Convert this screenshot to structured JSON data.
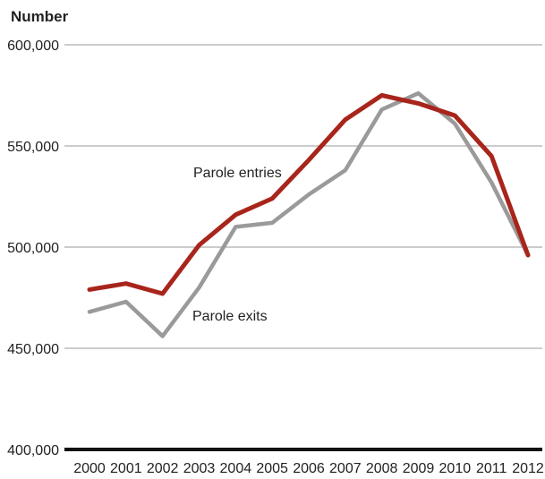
{
  "chart_data": {
    "type": "line",
    "ylabel": "Number",
    "xlabel": "",
    "title": "",
    "x": [
      "2000",
      "2001",
      "2002",
      "2003",
      "2004",
      "2005",
      "2006",
      "2007",
      "2008",
      "2009",
      "2010",
      "2011",
      "2012"
    ],
    "ylim": [
      400000,
      600000
    ],
    "yticks": [
      400000,
      450000,
      500000,
      550000,
      600000
    ],
    "ytick_labels": [
      "400,000",
      "450,000",
      "500,000",
      "550,000",
      "600,000"
    ],
    "grid": true,
    "series": [
      {
        "name": "Parole entries",
        "color": "#a8251c",
        "values": [
          479000,
          482000,
          477000,
          501000,
          516000,
          524000,
          543000,
          563000,
          575000,
          571000,
          565000,
          545000,
          496000
        ]
      },
      {
        "name": "Parole exits",
        "color": "#9a9a9a",
        "values": [
          468000,
          473000,
          456000,
          480000,
          510000,
          512000,
          526000,
          538000,
          568000,
          576000,
          561000,
          532000,
          496000
        ]
      }
    ]
  }
}
